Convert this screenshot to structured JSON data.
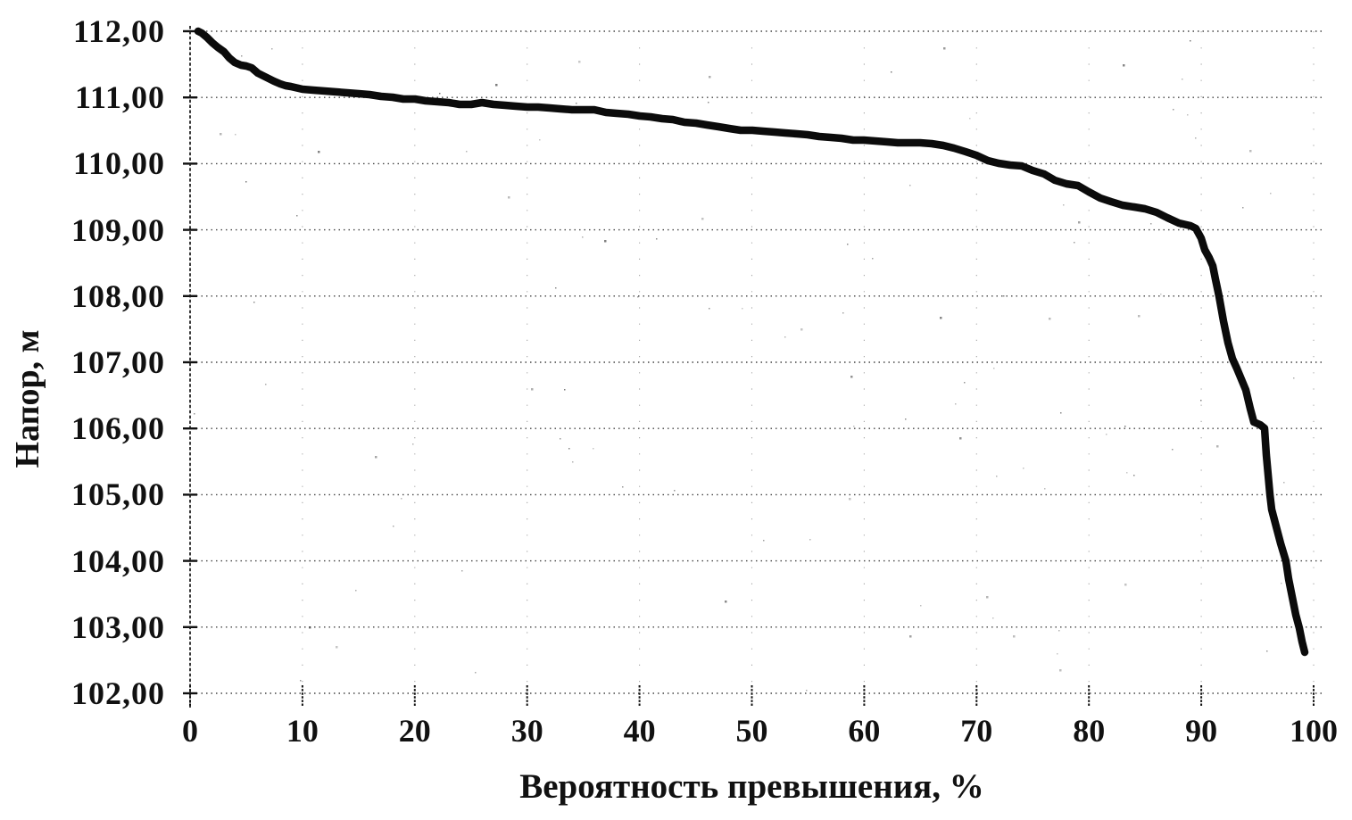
{
  "colors": {
    "background": "#ffffff",
    "ink": "#111111",
    "grid": "#2b2b2b",
    "curve": "#0b0b0b"
  },
  "chart_data": {
    "type": "line",
    "title": "",
    "xlabel": "Вероятность превышения, %",
    "ylabel": "Напор, м",
    "xlim": [
      0,
      100
    ],
    "ylim": [
      102,
      112
    ],
    "grid": {
      "horizontal": "dotted",
      "vertical": "faint-dotted"
    },
    "legend": "none",
    "decimal_separator": ",",
    "x_ticks": [
      0,
      10,
      20,
      30,
      40,
      50,
      60,
      70,
      80,
      90,
      100
    ],
    "y_ticks": [
      {
        "value": 112,
        "label": "112,00"
      },
      {
        "value": 111,
        "label": "111,00"
      },
      {
        "value": 110,
        "label": "110,00"
      },
      {
        "value": 109,
        "label": "109,00"
      },
      {
        "value": 108,
        "label": "108,00"
      },
      {
        "value": 107,
        "label": "107,00"
      },
      {
        "value": 106,
        "label": "106,00"
      },
      {
        "value": 105,
        "label": "105,00"
      },
      {
        "value": 104,
        "label": "104,00"
      },
      {
        "value": 103,
        "label": "103,00"
      },
      {
        "value": 102,
        "label": "102,00"
      }
    ],
    "series": [
      {
        "name": "head-exceedance-duration-curve",
        "color": "#0b0b0b",
        "stroke_width": 8.5,
        "points": [
          [
            0.7,
            112.0
          ],
          [
            1.0,
            111.97
          ],
          [
            1.5,
            111.9
          ],
          [
            2.0,
            111.83
          ],
          [
            2.5,
            111.76
          ],
          [
            3.0,
            111.69
          ],
          [
            3.5,
            111.6
          ],
          [
            4.0,
            111.53
          ],
          [
            4.5,
            111.49
          ],
          [
            5.0,
            111.47
          ],
          [
            5.5,
            111.45
          ],
          [
            6.0,
            111.37
          ],
          [
            6.5,
            111.32
          ],
          [
            7.0,
            111.28
          ],
          [
            7.5,
            111.24
          ],
          [
            8.0,
            111.21
          ],
          [
            8.5,
            111.18
          ],
          [
            9.0,
            111.16
          ],
          [
            10,
            111.13
          ],
          [
            11,
            111.11
          ],
          [
            12,
            111.1
          ],
          [
            13,
            111.08
          ],
          [
            14,
            111.07
          ],
          [
            15,
            111.06
          ],
          [
            16,
            111.04
          ],
          [
            17,
            111.02
          ],
          [
            18,
            111.0
          ],
          [
            19,
            110.98
          ],
          [
            20,
            110.97
          ],
          [
            21,
            110.95
          ],
          [
            22,
            110.93
          ],
          [
            23,
            110.92
          ],
          [
            24,
            110.9
          ],
          [
            25,
            110.89
          ],
          [
            26,
            110.92
          ],
          [
            27,
            110.9
          ],
          [
            28,
            110.88
          ],
          [
            29,
            110.87
          ],
          [
            30,
            110.86
          ],
          [
            31,
            110.85
          ],
          [
            32,
            110.84
          ],
          [
            33,
            110.83
          ],
          [
            34,
            110.82
          ],
          [
            35,
            110.81
          ],
          [
            36,
            110.81
          ],
          [
            37,
            110.78
          ],
          [
            38,
            110.76
          ],
          [
            39,
            110.74
          ],
          [
            40,
            110.72
          ],
          [
            41,
            110.7
          ],
          [
            42,
            110.68
          ],
          [
            43,
            110.66
          ],
          [
            44,
            110.63
          ],
          [
            45,
            110.61
          ],
          [
            46,
            110.58
          ],
          [
            47,
            110.56
          ],
          [
            48,
            110.53
          ],
          [
            49,
            110.51
          ],
          [
            50,
            110.5
          ],
          [
            51,
            110.49
          ],
          [
            52,
            110.48
          ],
          [
            53,
            110.47
          ],
          [
            54,
            110.45
          ],
          [
            55,
            110.43
          ],
          [
            56,
            110.41
          ],
          [
            57,
            110.4
          ],
          [
            58,
            110.38
          ],
          [
            59,
            110.36
          ],
          [
            60,
            110.35
          ],
          [
            61,
            110.34
          ],
          [
            62,
            110.33
          ],
          [
            63,
            110.32
          ],
          [
            64,
            110.32
          ],
          [
            65,
            110.31
          ],
          [
            66,
            110.3
          ],
          [
            67,
            110.28
          ],
          [
            68,
            110.24
          ],
          [
            69,
            110.18
          ],
          [
            70,
            110.12
          ],
          [
            71,
            110.04
          ],
          [
            72,
            110.0
          ],
          [
            73,
            109.98
          ],
          [
            74,
            109.96
          ],
          [
            75,
            109.9
          ],
          [
            76,
            109.84
          ],
          [
            77,
            109.75
          ],
          [
            78,
            109.7
          ],
          [
            79,
            109.67
          ],
          [
            80,
            109.58
          ],
          [
            81,
            109.48
          ],
          [
            82,
            109.42
          ],
          [
            83,
            109.37
          ],
          [
            84,
            109.35
          ],
          [
            85,
            109.32
          ],
          [
            86,
            109.27
          ],
          [
            87,
            109.18
          ],
          [
            88,
            109.1
          ],
          [
            89,
            109.06
          ],
          [
            89.5,
            109.02
          ],
          [
            90,
            108.88
          ],
          [
            90.3,
            108.7
          ],
          [
            90.7,
            108.58
          ],
          [
            91,
            108.45
          ],
          [
            91.3,
            108.25
          ],
          [
            91.6,
            108.0
          ],
          [
            92,
            107.62
          ],
          [
            92.4,
            107.3
          ],
          [
            92.8,
            107.05
          ],
          [
            93.2,
            106.9
          ],
          [
            93.6,
            106.75
          ],
          [
            94,
            106.58
          ],
          [
            94.4,
            106.3
          ],
          [
            94.7,
            106.1
          ],
          [
            95.2,
            106.05
          ],
          [
            95.6,
            106.0
          ],
          [
            95.8,
            105.6
          ],
          [
            96.1,
            105.0
          ],
          [
            96.3,
            104.78
          ],
          [
            96.7,
            104.52
          ],
          [
            97.1,
            104.26
          ],
          [
            97.5,
            104.0
          ],
          [
            97.8,
            103.72
          ],
          [
            98.1,
            103.45
          ],
          [
            98.4,
            103.18
          ],
          [
            98.7,
            102.98
          ],
          [
            99.0,
            102.78
          ],
          [
            99.2,
            102.62
          ]
        ]
      }
    ]
  }
}
